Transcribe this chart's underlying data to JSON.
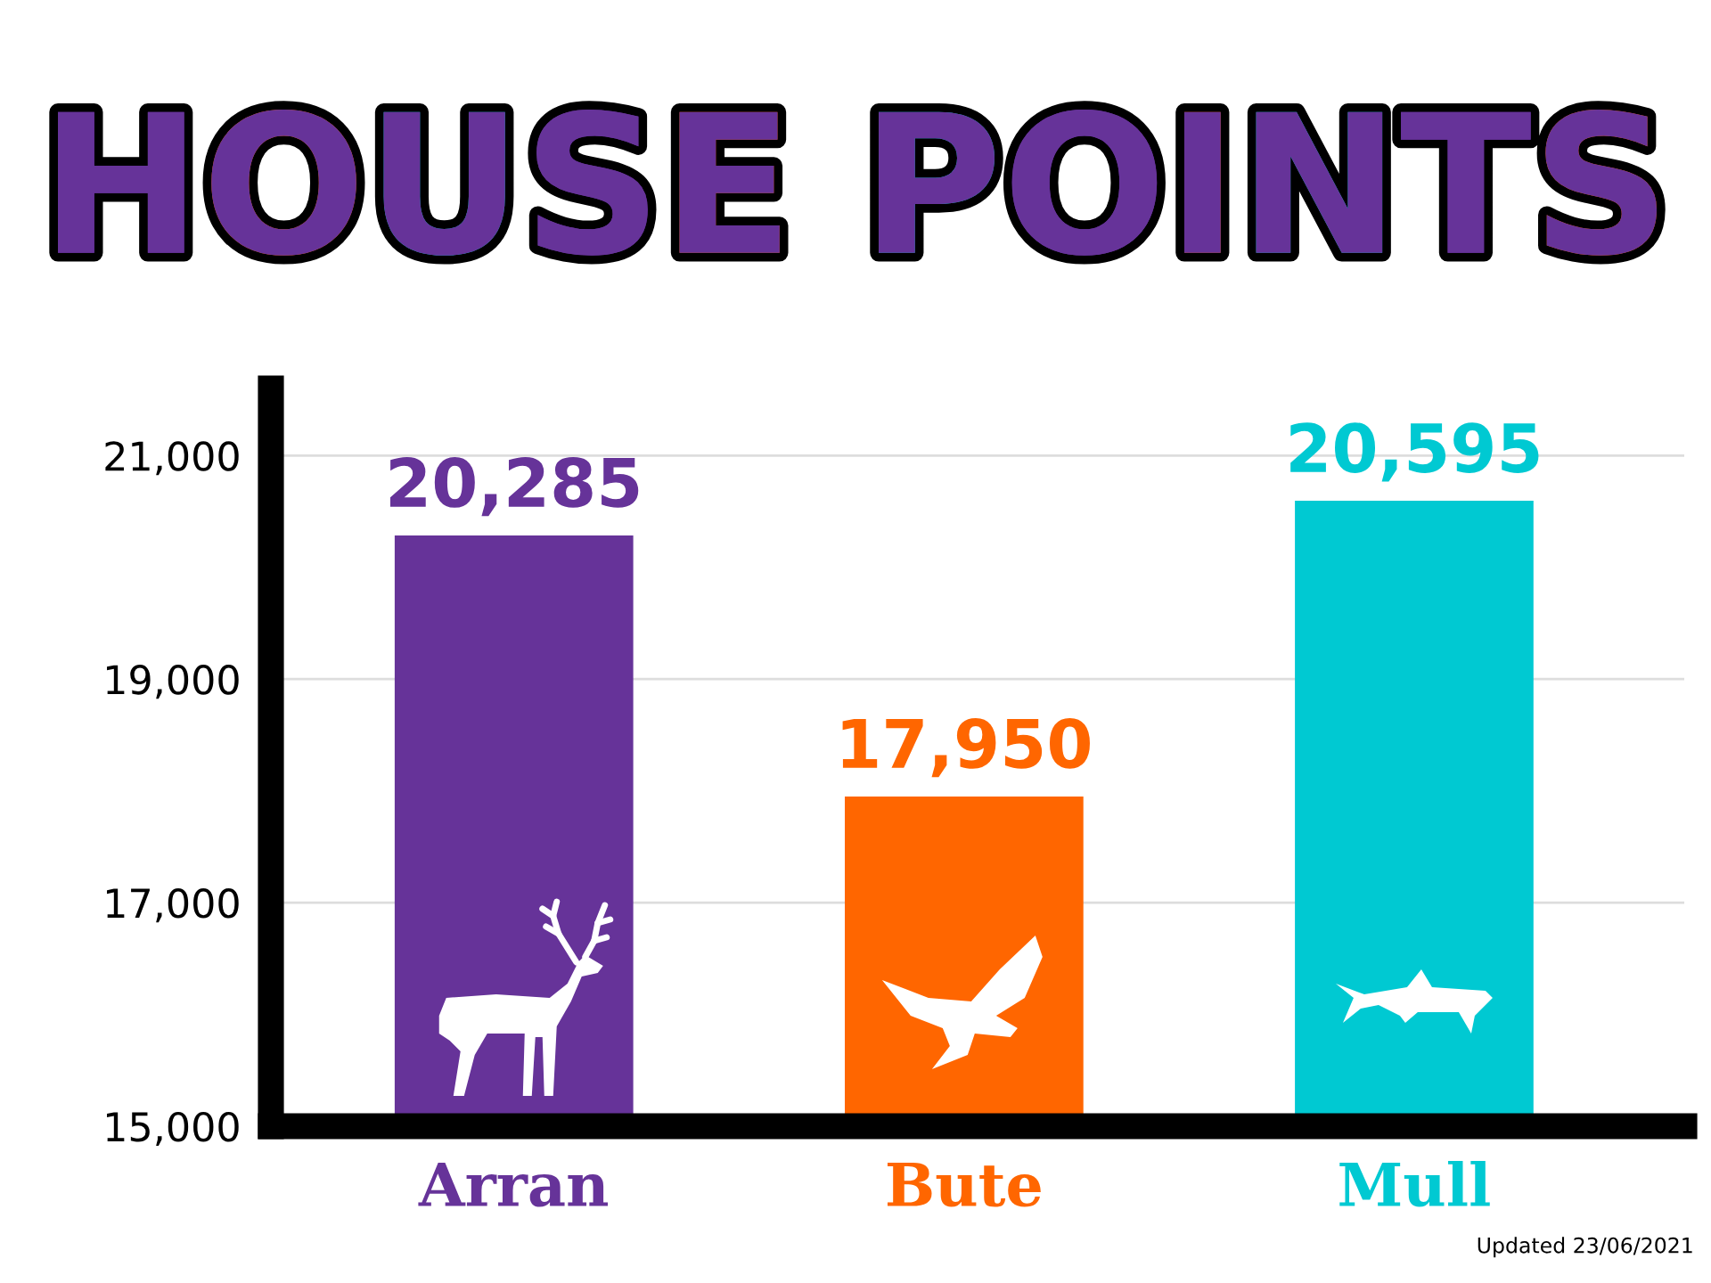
{
  "chart_data": {
    "type": "bar",
    "title": "HOUSE POINTS",
    "categories": [
      "Arran",
      "Bute",
      "Mull"
    ],
    "values": [
      20285,
      17950,
      20595
    ],
    "value_labels": [
      "20,285",
      "17,950",
      "20,595"
    ],
    "colors": [
      "#663399",
      "#ff6600",
      "#00c9d2"
    ],
    "ylim": [
      15000,
      21600
    ],
    "yticks": [
      {
        "value": 15000,
        "label": "15,000"
      },
      {
        "value": 17000,
        "label": "17,000"
      },
      {
        "value": 19000,
        "label": "19,000"
      },
      {
        "value": 21000,
        "label": "21,000"
      }
    ],
    "grid": "y",
    "annotations": [
      "Updated 23/06/2021"
    ]
  }
}
